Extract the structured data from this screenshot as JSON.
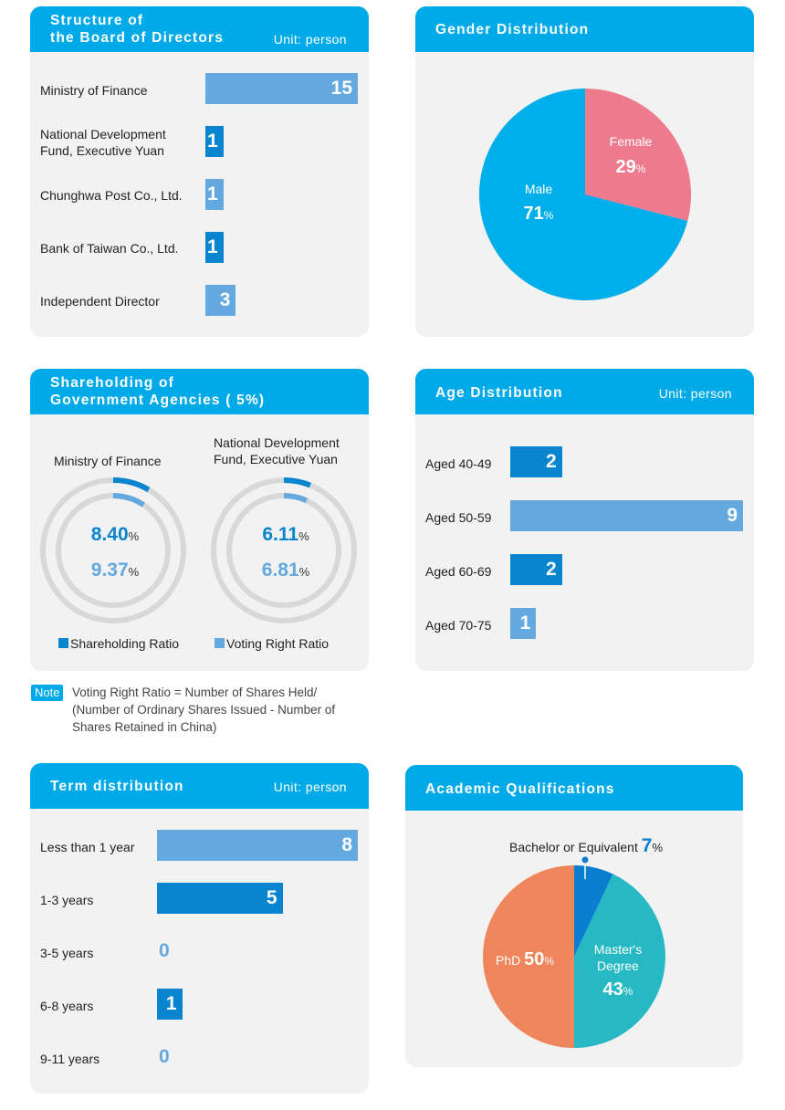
{
  "board": {
    "title_line1": "Structure of",
    "title_line2": "the Board of Directors",
    "unit": "Unit: person",
    "rows": [
      {
        "label": "Ministry of Finance",
        "value": "15"
      },
      {
        "label_line1": "National Development",
        "label_line2": "Fund, Executive Yuan",
        "value": "1"
      },
      {
        "label": "Chunghwa Post Co., Ltd.",
        "value": "1"
      },
      {
        "label": "Bank of Taiwan Co., Ltd.",
        "value": "1"
      },
      {
        "label": "Independent Director",
        "value": "3"
      }
    ]
  },
  "gender": {
    "title": "Gender Distribution",
    "male_label": "Male",
    "male_value": "71",
    "male_pct": "%",
    "female_label": "Female",
    "female_value": "29",
    "female_pct": "%"
  },
  "shareholding": {
    "title_line1": "Shareholding of",
    "title_line2": "Government Agencies ( 5%)",
    "entity1_label": "Ministry of Finance",
    "entity2_line1": "National Development",
    "entity2_line2": "Fund, Executive Yuan",
    "entity1_share": "8.40",
    "entity1_vote": "9.37",
    "entity2_share": "6.11",
    "entity2_vote": "6.81",
    "pct": "%",
    "legend_share": "Shareholding Ratio",
    "legend_vote": "Voting Right Ratio",
    "note_badge": "Note",
    "note_line1": "Voting Right Ratio = Number of Shares Held/",
    "note_line2": "(Number of Ordinary Shares Issued - Number of",
    "note_line3": "Shares Retained in China)"
  },
  "age": {
    "title": "Age Distribution",
    "unit": "Unit: person",
    "rows": [
      {
        "label": "Aged 40-49",
        "value": "2"
      },
      {
        "label": "Aged 50-59",
        "value": "9"
      },
      {
        "label": "Aged 60-69",
        "value": "2"
      },
      {
        "label": "Aged 70-75",
        "value": "1"
      }
    ]
  },
  "term": {
    "title": "Term distribution",
    "unit": "Unit: person",
    "rows": [
      {
        "label": "Less than 1 year",
        "value": "8"
      },
      {
        "label": "1-3 years",
        "value": "5"
      },
      {
        "label": "3-5 years",
        "value": "0"
      },
      {
        "label": "6-8 years",
        "value": "1"
      },
      {
        "label": "9-11 years",
        "value": "0"
      }
    ]
  },
  "academic": {
    "title": "Academic Qualifications",
    "bachelor_label": "Bachelor or Equivalent",
    "bachelor_value": "7",
    "master_line1": "Master's",
    "master_line2": "Degree",
    "master_value": "43",
    "phd_label": "PhD",
    "phd_value": "50",
    "pct": "%"
  },
  "colors": {
    "header": "#00a9e8",
    "card_bg": "#f2f2f2",
    "light_blue": "#63a8df",
    "dark_blue": "#0984cf",
    "male": "#00aeea",
    "female": "#ee7b8d",
    "bachelor": "#0a7fd0",
    "master": "#26b9c3",
    "phd": "#ef855c",
    "ring_track": "#d8d8d8"
  },
  "chart_data": [
    {
      "type": "bar",
      "title": "Structure of the Board of Directors",
      "unit": "Unit: person",
      "categories": [
        "Ministry of Finance",
        "National Development Fund, Executive Yuan",
        "Chunghwa Post Co., Ltd.",
        "Bank of Taiwan Co., Ltd.",
        "Independent Director"
      ],
      "values": [
        15,
        1,
        1,
        1,
        3
      ]
    },
    {
      "type": "pie",
      "title": "Gender Distribution",
      "categories": [
        "Male",
        "Female"
      ],
      "values": [
        71,
        29
      ]
    },
    {
      "type": "pie",
      "title": "Shareholding of Government Agencies ( 5%)",
      "categories": [
        "Ministry of Finance",
        "National Development Fund, Executive Yuan"
      ],
      "series": [
        {
          "name": "Shareholding Ratio",
          "values": [
            8.4,
            6.11
          ]
        },
        {
          "name": "Voting Right Ratio",
          "values": [
            9.37,
            6.81
          ]
        }
      ]
    },
    {
      "type": "bar",
      "title": "Age Distribution",
      "unit": "Unit: person",
      "categories": [
        "Aged 40-49",
        "Aged 50-59",
        "Aged 60-69",
        "Aged 70-75"
      ],
      "values": [
        2,
        9,
        2,
        1
      ]
    },
    {
      "type": "bar",
      "title": "Term distribution",
      "unit": "Unit: person",
      "categories": [
        "Less than 1 year",
        "1-3 years",
        "3-5 years",
        "6-8 years",
        "9-11 years"
      ],
      "values": [
        8,
        5,
        0,
        1,
        0
      ]
    },
    {
      "type": "pie",
      "title": "Academic Qualifications",
      "categories": [
        "Bachelor or Equivalent",
        "Master's Degree",
        "PhD"
      ],
      "values": [
        7,
        43,
        50
      ]
    }
  ]
}
